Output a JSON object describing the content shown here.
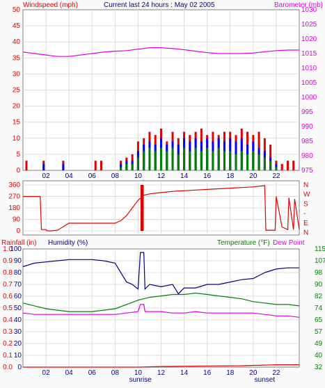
{
  "header": {
    "title": "Current last 24 hours : May 02 2005",
    "left_label": "Windspeed (mph)",
    "right_label": "Barometer (mb)"
  },
  "colors": {
    "frame_bg": "#fafafa",
    "panel_bg": "#ffffff",
    "grid": "#dcdcdc",
    "red": "#e00000",
    "blue": "#0000ff",
    "green": "#008000",
    "magenta": "#e000e0",
    "navy": "#000080"
  },
  "x_ticks": [
    "02",
    "04",
    "06",
    "08",
    "10",
    "12",
    "14",
    "16",
    "18",
    "20",
    "22"
  ],
  "sun_labels": {
    "sunrise": "sunrise",
    "sunset": "sunset"
  },
  "chart_data": [
    {
      "type": "line",
      "title": "Current last 24 hours : May 02 2005",
      "xlabel": "",
      "x_unit": "hour",
      "xlim": [
        0,
        24
      ],
      "ylabel": "Windspeed (mph)",
      "ylim": [
        0,
        50
      ],
      "yticks": [
        0,
        5,
        10,
        15,
        20,
        25,
        30,
        35,
        40,
        45,
        50
      ],
      "y2label": "Barometer (mb)",
      "y2lim": [
        975,
        1030
      ],
      "y2ticks": [
        975,
        980,
        985,
        990,
        995,
        1000,
        1005,
        1010,
        1015,
        1020,
        1025,
        1030
      ],
      "series": [
        {
          "axis": "y",
          "color": "#e00000",
          "style": "bars",
          "x": [
            0.3,
            1.8,
            3.5,
            6.3,
            6.8,
            8.5,
            9.0,
            9.5,
            10.0,
            10.5,
            11.0,
            11.5,
            12.0,
            12.5,
            13.0,
            13.5,
            14.0,
            14.5,
            15.0,
            15.5,
            16.0,
            16.5,
            17.0,
            17.5,
            18.0,
            18.5,
            19.0,
            19.5,
            20.0,
            20.5,
            21.0,
            21.5,
            22.0,
            22.5,
            23.0,
            23.5
          ],
          "y": [
            3,
            3,
            3,
            3,
            3,
            3,
            4,
            5,
            9,
            10,
            12,
            11,
            13,
            9,
            12,
            10,
            12,
            11,
            12,
            13,
            11,
            12,
            11,
            12,
            12,
            11,
            13,
            12,
            11,
            12,
            10,
            8,
            3,
            2,
            3,
            3
          ]
        },
        {
          "axis": "y",
          "color": "#0000ff",
          "style": "bars",
          "x": [
            1.8,
            3.5,
            8.5,
            9.0,
            9.5,
            10.0,
            10.5,
            11.0,
            11.5,
            12.0,
            12.5,
            13.0,
            13.5,
            14.0,
            14.5,
            15.0,
            15.5,
            16.0,
            16.5,
            17.0,
            17.5,
            18.0,
            18.5,
            19.0,
            19.5,
            20.0,
            20.5,
            21.0,
            21.5,
            22.0
          ],
          "y": [
            2,
            2,
            2,
            3,
            3,
            6,
            8,
            9,
            8,
            10,
            8,
            9,
            8,
            10,
            9,
            10,
            9,
            10,
            9,
            10,
            9,
            10,
            9,
            10,
            8,
            9,
            7,
            6,
            4,
            2
          ]
        },
        {
          "axis": "y",
          "color": "#008000",
          "style": "bars",
          "x": [
            8.5,
            9.0,
            9.5,
            10.0,
            10.5,
            11.0,
            11.5,
            12.0,
            12.5,
            13.0,
            13.5,
            14.0,
            14.5,
            15.0,
            15.5,
            16.0,
            16.5,
            17.0,
            17.5,
            18.0,
            18.5,
            19.0,
            19.5,
            20.0,
            20.5,
            21.0,
            21.5,
            22.0
          ],
          "y": [
            1,
            2,
            2,
            4,
            6,
            7,
            6,
            7,
            6,
            7,
            5,
            7,
            6,
            7,
            6,
            7,
            6,
            7,
            6,
            6,
            5,
            6,
            5,
            6,
            5,
            4,
            3,
            1
          ]
        },
        {
          "axis": "y2",
          "color": "#e000e0",
          "style": "line",
          "x": [
            0,
            1,
            2,
            3,
            4,
            5,
            6,
            7,
            8,
            9,
            10,
            11,
            12,
            13,
            14,
            15,
            16,
            17,
            18,
            19,
            20,
            21,
            22,
            23,
            24
          ],
          "y": [
            1015.5,
            1015.0,
            1014.5,
            1014.0,
            1014.0,
            1014.5,
            1015.0,
            1015.5,
            1015.8,
            1016.0,
            1016.5,
            1017.0,
            1017.0,
            1016.7,
            1016.3,
            1015.8,
            1015.3,
            1015.0,
            1015.0,
            1015.0,
            1015.2,
            1015.6,
            1016.0,
            1016.2,
            1016.2
          ]
        }
      ],
      "sunrise_hour": 10.2,
      "sunset_hour": 21.0
    },
    {
      "type": "scatter",
      "title": "",
      "ylim": [
        0,
        360
      ],
      "yticks": [
        0,
        90,
        180,
        270,
        360
      ],
      "right_labels": [
        "N",
        "W",
        "S",
        "-",
        "E",
        "N"
      ],
      "x_unit": "hour",
      "xlim": [
        0,
        24
      ],
      "series": [
        {
          "color": "#e00000",
          "style": "line",
          "x": [
            0,
            1.5,
            1.6,
            2.0,
            2.1,
            2.4,
            3.0,
            4.0,
            5.0,
            6.0,
            7.0,
            8.0,
            8.5,
            9.0,
            9.5,
            10.0,
            10.5,
            11.0,
            12.0,
            13.0,
            14.0,
            15.0,
            16.0,
            17.0,
            18.0,
            19.0,
            20.0,
            21.0,
            21.1,
            21.9,
            22.0,
            22.5,
            23.0,
            23.1,
            23.5,
            23.6,
            24.0
          ],
          "y": [
            270,
            270,
            10,
            10,
            0,
            0,
            5,
            60,
            60,
            60,
            60,
            60,
            80,
            120,
            180,
            240,
            280,
            290,
            300,
            310,
            315,
            320,
            325,
            330,
            335,
            340,
            345,
            355,
            5,
            5,
            270,
            30,
            10,
            260,
            10,
            250,
            10
          ]
        }
      ]
    },
    {
      "type": "line",
      "title": "",
      "x_unit": "hour",
      "xlim": [
        0,
        24
      ],
      "ylabel_left": "Rainfall (in)",
      "ylabel_humidity": "Humidity (%)",
      "ylim_rain": [
        0,
        1.0
      ],
      "rain_ticks": [
        "0.0",
        "0.1",
        "0.2",
        "0.3",
        "0.4",
        "0.5",
        "0.6",
        "0.7",
        "0.8",
        "0.9",
        "1.0"
      ],
      "ylim_humidity": [
        0,
        100
      ],
      "humidity_ticks": [
        0,
        10,
        20,
        30,
        40,
        50,
        60,
        70,
        80,
        90,
        100
      ],
      "ylabel_right": "Temperature (°F)",
      "ylabel_dew": "Dew Point",
      "ylim_temp": [
        32,
        115
      ],
      "temp_ticks": [
        32,
        40,
        49,
        57,
        65,
        74,
        82,
        90,
        98,
        107,
        115
      ],
      "series": [
        {
          "name": "Humidity (%)",
          "color": "#000080",
          "axis": "humidity",
          "x": [
            0,
            1,
            2,
            3,
            4,
            5,
            6,
            7,
            8,
            8.5,
            9.0,
            9.5,
            10.0,
            10.2,
            10.3,
            10.5,
            10.6,
            11,
            12,
            13,
            13.5,
            14,
            15,
            16,
            17,
            18,
            19,
            20,
            21,
            22,
            23,
            24
          ],
          "y": [
            85,
            88,
            89,
            90,
            91,
            91,
            91,
            90,
            88,
            80,
            72,
            70,
            66,
            97,
            97,
            97,
            66,
            70,
            68,
            70,
            62,
            67,
            67,
            70,
            70,
            72,
            74,
            75,
            80,
            83,
            84,
            84
          ]
        },
        {
          "name": "Temperature (°F)",
          "color": "#008000",
          "axis": "temp",
          "x": [
            0,
            1,
            2,
            3,
            4,
            5,
            6,
            7,
            8,
            9,
            10,
            11,
            12,
            13,
            14,
            15,
            16,
            17,
            18,
            19,
            20,
            21,
            22,
            23,
            24
          ],
          "y": [
            77,
            75,
            73,
            72,
            71,
            71,
            71,
            72,
            73,
            76,
            79,
            81,
            82,
            83,
            83,
            84,
            83,
            82,
            81,
            80,
            78,
            77,
            76,
            76,
            75
          ]
        },
        {
          "name": "Dew Point",
          "color": "#e000e0",
          "axis": "temp",
          "x": [
            0,
            1,
            2,
            3,
            4,
            5,
            6,
            7,
            8,
            9,
            10,
            10.2,
            10.3,
            10.5,
            10.6,
            11,
            12,
            13,
            14,
            15,
            16,
            17,
            18,
            19,
            20,
            21,
            22,
            23,
            24
          ],
          "y": [
            70,
            69,
            69,
            69,
            69,
            69,
            69,
            69,
            69,
            70,
            71,
            76,
            76,
            76,
            71,
            71,
            71,
            70,
            70,
            71,
            70,
            70,
            70,
            70,
            70,
            69,
            68,
            68,
            67
          ]
        },
        {
          "name": "Rainfall (in)",
          "color": "#e00000",
          "axis": "rain",
          "x": [
            0,
            10,
            12,
            16,
            19,
            22,
            24
          ],
          "y": [
            0.0,
            0.0,
            0.005,
            0.01,
            0.012,
            0.02,
            0.02
          ]
        }
      ],
      "sunrise_hour": 10.2,
      "sunset_hour": 21.0
    }
  ]
}
